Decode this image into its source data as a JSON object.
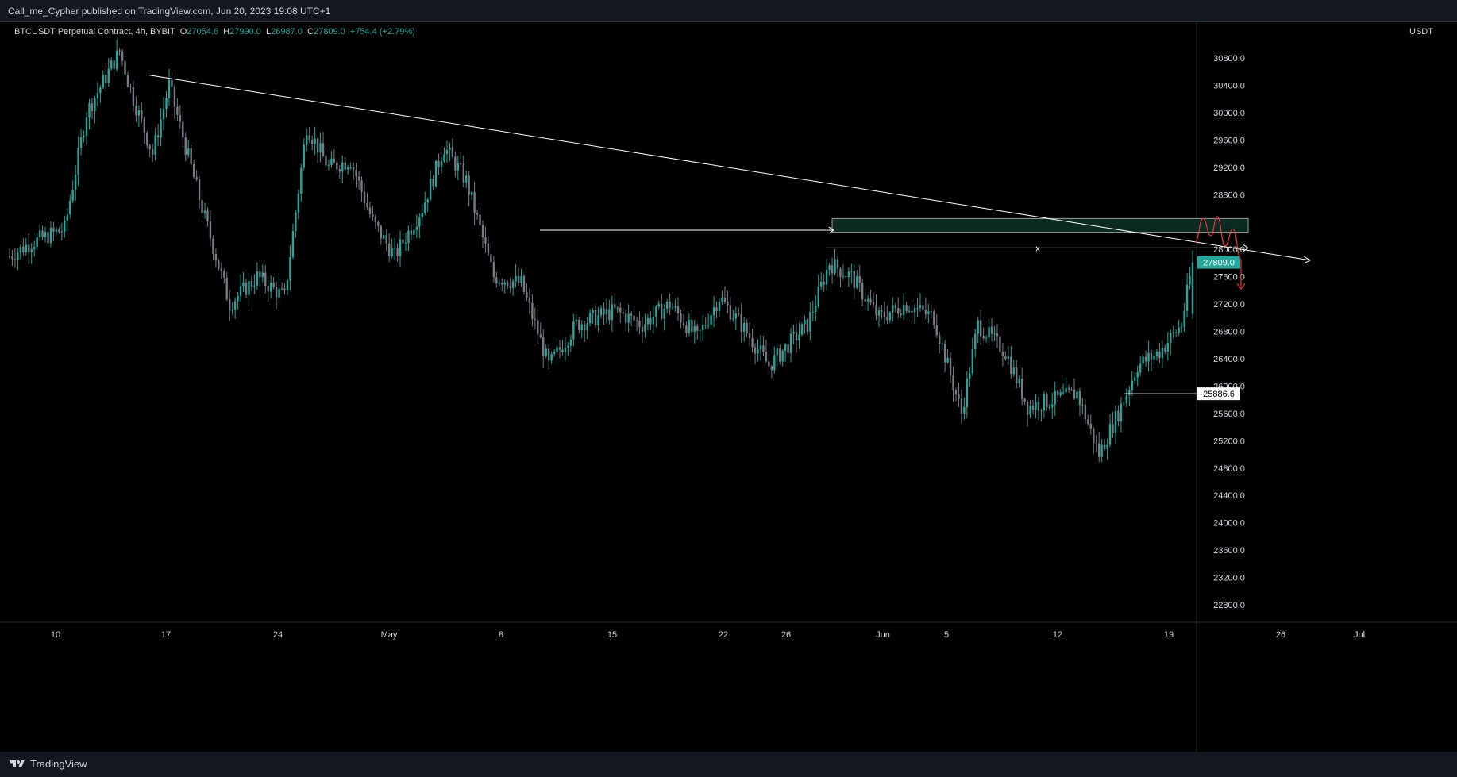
{
  "publish_line": "Call_me_Cypher published on TradingView.com, Jun 20, 2023 19:08 UTC+1",
  "brand": "TradingView",
  "legend": {
    "symbol": "BTCUSDT Perpetual Contract, 4h, BYBIT",
    "o_label": "O",
    "o_value": "27054.6",
    "h_label": "H",
    "h_value": "27990.0",
    "l_label": "L",
    "l_value": "26987.0",
    "c_label": "C",
    "c_value": "27809.0",
    "change": "+754.4 (+2.79%)"
  },
  "axis_unit": "USDT",
  "colors": {
    "up": "#26a69a",
    "down": "#787b86",
    "trendline": "#ffffff",
    "zone_fill": "#0b2a22",
    "projection": "#e53935",
    "price_label_bg": "#26a69a"
  },
  "chart_data": {
    "type": "candlestick",
    "symbol": "BTCUSDT Perpetual Contract",
    "interval": "4h",
    "exchange": "BYBIT",
    "ylim": [
      22400,
      31200
    ],
    "y_ticks": [
      "30800.0",
      "30400.0",
      "30000.0",
      "29600.0",
      "29200.0",
      "28800.0",
      "28400.0",
      "28000.0",
      "27600.0",
      "27200.0",
      "26800.0",
      "26400.0",
      "26000.0",
      "25600.0",
      "25200.0",
      "24800.0",
      "24400.0",
      "24000.0",
      "23600.0",
      "23200.0",
      "22800.0"
    ],
    "x_ticks": [
      "10",
      "17",
      "24",
      "May",
      "8",
      "15",
      "22",
      "26",
      "Jun",
      "5",
      "12",
      "19",
      "26",
      "Jul"
    ],
    "last_price_label": "27809.0",
    "horizontal_line_label": "25886.6",
    "horizontal_line_price": 25886.6,
    "zone": {
      "top": 28450,
      "bottom": 28250
    },
    "x_marker": "x",
    "closes_anchor": [
      [
        0,
        27900
      ],
      [
        8,
        28100
      ],
      [
        20,
        28300
      ],
      [
        28,
        30000
      ],
      [
        40,
        30900
      ],
      [
        45,
        30200
      ],
      [
        52,
        29400
      ],
      [
        58,
        30400
      ],
      [
        70,
        28600
      ],
      [
        80,
        27200
      ],
      [
        90,
        27600
      ],
      [
        100,
        27300
      ],
      [
        108,
        29800
      ],
      [
        116,
        29200
      ],
      [
        124,
        29300
      ],
      [
        132,
        28400
      ],
      [
        140,
        27900
      ],
      [
        150,
        28600
      ],
      [
        158,
        29500
      ],
      [
        166,
        29000
      ],
      [
        176,
        27600
      ],
      [
        186,
        27500
      ],
      [
        196,
        26300
      ],
      [
        206,
        26900
      ],
      [
        220,
        27100
      ],
      [
        230,
        26900
      ],
      [
        240,
        27200
      ],
      [
        250,
        26700
      ],
      [
        258,
        27300
      ],
      [
        266,
        26900
      ],
      [
        276,
        26300
      ],
      [
        290,
        26900
      ],
      [
        298,
        27800
      ],
      [
        306,
        27600
      ],
      [
        316,
        27000
      ],
      [
        326,
        27200
      ],
      [
        336,
        27000
      ],
      [
        346,
        25600
      ],
      [
        352,
        26900
      ],
      [
        362,
        26500
      ],
      [
        370,
        25700
      ],
      [
        380,
        25800
      ],
      [
        388,
        25900
      ],
      [
        396,
        25000
      ],
      [
        404,
        25700
      ],
      [
        410,
        26300
      ],
      [
        418,
        26500
      ],
      [
        426,
        26900
      ],
      [
        430,
        27810
      ]
    ]
  }
}
